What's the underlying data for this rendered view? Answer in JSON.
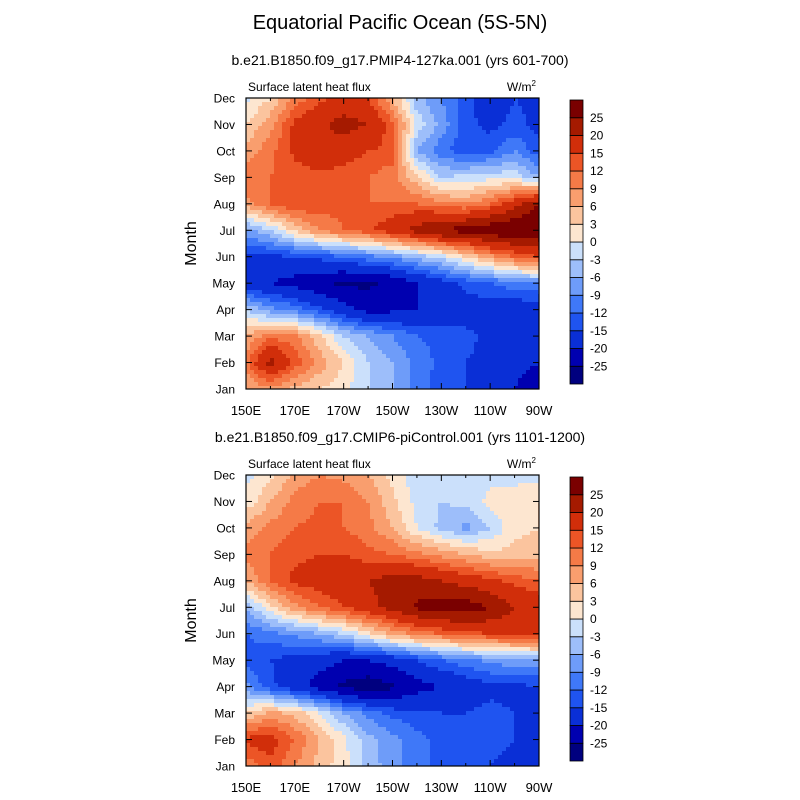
{
  "figure": {
    "title": "Equatorial Pacific Ocean (5S-5N)"
  },
  "colorbar": {
    "levels": [
      -25,
      -20,
      -15,
      -12,
      -9,
      -6,
      -3,
      0,
      3,
      6,
      9,
      12,
      15,
      20,
      25
    ],
    "level_labels": [
      "-25",
      "-20",
      "-15",
      "-12",
      "-9",
      "-6",
      "-3",
      "0",
      "3",
      "6",
      "9",
      "12",
      "15",
      "20",
      "25"
    ],
    "colors": [
      "#00007f",
      "#0000b0",
      "#0a2fd6",
      "#1f54f0",
      "#3f78f8",
      "#6e9cf9",
      "#9dbefa",
      "#cbe0fb",
      "#fde6d0",
      "#fbc49e",
      "#f99e6e",
      "#f57a47",
      "#ec5526",
      "#d12e0a",
      "#a51a00",
      "#7a0000"
    ]
  },
  "chart_data": [
    {
      "type": "heatmap",
      "title": "b.e21.B1850.f09_g17.PMIP4-127ka.001 (yrs 601-700)",
      "left_label": "Surface latent heat flux",
      "right_label": "W/m",
      "right_label_sup": "2",
      "ylabel": "Month",
      "x_ticks": [
        "150E",
        "170E",
        "170W",
        "150W",
        "130W",
        "110W",
        "90W"
      ],
      "y_ticks": [
        "Jan",
        "Feb",
        "Mar",
        "Apr",
        "May",
        "Jun",
        "Jul",
        "Aug",
        "Sep",
        "Oct",
        "Nov",
        "Dec"
      ],
      "x_range": [
        150,
        270
      ],
      "grid": false,
      "x": [
        150,
        160,
        170,
        180,
        190,
        200,
        210,
        220,
        230,
        240,
        250,
        260,
        270
      ],
      "y": [
        "Jan",
        "Feb",
        "Mar",
        "Apr",
        "May",
        "Jun",
        "Jul",
        "Aug",
        "Sep",
        "Oct",
        "Nov",
        "Dec"
      ],
      "z": [
        [
          6,
          8,
          5,
          3,
          1,
          -3,
          -6,
          -10,
          -14,
          -15,
          -17,
          -20,
          -22
        ],
        [
          11,
          22,
          14,
          8,
          3,
          -3,
          -6,
          -10,
          -13,
          -15,
          -16,
          -19,
          -20
        ],
        [
          6,
          11,
          10,
          4,
          -3,
          -6,
          -9,
          -12,
          -13,
          -14,
          -16,
          -17,
          -18
        ],
        [
          -3,
          -8,
          -10,
          -14,
          -18,
          -22,
          -21,
          -20,
          -18,
          -17,
          -17,
          -18,
          -18
        ],
        [
          -18,
          -20,
          -22,
          -24,
          -26,
          -26,
          -24,
          -20,
          -17,
          -14,
          -12,
          -10,
          -9
        ],
        [
          -16,
          -16,
          -15,
          -14,
          -12,
          -10,
          -8,
          -5,
          -2,
          3,
          8,
          12,
          15
        ],
        [
          -7,
          -3,
          4,
          9,
          12,
          14,
          18,
          22,
          26,
          27,
          29,
          30,
          31
        ],
        [
          8,
          12,
          15,
          14,
          13,
          12,
          12,
          12,
          10,
          9,
          12,
          18,
          25
        ],
        [
          11,
          12,
          13,
          14,
          13,
          12,
          10,
          4,
          -3,
          -2,
          -1,
          -1,
          -6
        ],
        [
          7,
          11,
          16,
          19,
          17,
          15,
          14,
          -6,
          -11,
          -14,
          -13,
          -9,
          -14
        ],
        [
          3,
          8,
          16,
          19,
          22,
          20,
          13,
          -1,
          -7,
          -14,
          -16,
          -14,
          -16
        ],
        [
          -1,
          3,
          10,
          14,
          16,
          15,
          6,
          -5,
          -9,
          -14,
          -18,
          -15,
          -16
        ]
      ]
    },
    {
      "type": "heatmap",
      "title": "b.e21.B1850.f09_g17.CMIP6-piControl.001 (yrs 1101-1200)",
      "left_label": "Surface latent heat flux",
      "right_label": "W/m",
      "right_label_sup": "2",
      "ylabel": "Month",
      "x_ticks": [
        "150E",
        "170E",
        "170W",
        "150W",
        "130W",
        "110W",
        "90W"
      ],
      "y_ticks": [
        "Jan",
        "Feb",
        "Mar",
        "Apr",
        "May",
        "Jun",
        "Jul",
        "Aug",
        "Sep",
        "Oct",
        "Nov",
        "Dec"
      ],
      "x_range": [
        150,
        270
      ],
      "grid": false,
      "x": [
        150,
        160,
        170,
        180,
        190,
        200,
        210,
        220,
        230,
        240,
        250,
        260,
        270
      ],
      "y": [
        "Jan",
        "Feb",
        "Mar",
        "Apr",
        "May",
        "Jun",
        "Jul",
        "Aug",
        "Sep",
        "Oct",
        "Nov",
        "Dec"
      ],
      "z": [
        [
          10,
          14,
          9,
          5,
          1,
          -4,
          -8,
          -11,
          -13,
          -15,
          -15,
          -16,
          -16
        ],
        [
          16,
          17,
          12,
          6,
          1,
          -5,
          -8,
          -11,
          -13,
          -14,
          -14,
          -15,
          -15
        ],
        [
          3,
          7,
          5,
          0,
          -6,
          -10,
          -13,
          -14,
          -15,
          -15,
          -14,
          -15,
          -16
        ],
        [
          -8,
          -14,
          -18,
          -22,
          -26,
          -28,
          -26,
          -22,
          -20,
          -18,
          -16,
          -16,
          -15
        ],
        [
          -13,
          -15,
          -17,
          -18,
          -20,
          -20,
          -18,
          -15,
          -12,
          -10,
          -8,
          -7,
          -7
        ],
        [
          -12,
          -10,
          -8,
          -6,
          -3,
          2,
          7,
          10,
          12,
          14,
          15,
          16,
          17
        ],
        [
          -5,
          2,
          8,
          12,
          15,
          18,
          22,
          26,
          28,
          28,
          25,
          20,
          18
        ],
        [
          6,
          12,
          16,
          17,
          18,
          20,
          22,
          22,
          20,
          18,
          16,
          14,
          12
        ],
        [
          10,
          12,
          14,
          15,
          15,
          13,
          12,
          10,
          8,
          6,
          4,
          4,
          5
        ],
        [
          7,
          10,
          12,
          13,
          12,
          10,
          6,
          0,
          -4,
          -7,
          -3,
          2,
          3
        ],
        [
          1,
          6,
          10,
          12,
          12,
          9,
          4,
          -1,
          -3,
          -2,
          1,
          3,
          3
        ],
        [
          -1,
          2,
          7,
          9,
          8,
          6,
          2,
          -2,
          -3,
          -2,
          -1,
          -2,
          -1
        ]
      ]
    }
  ]
}
